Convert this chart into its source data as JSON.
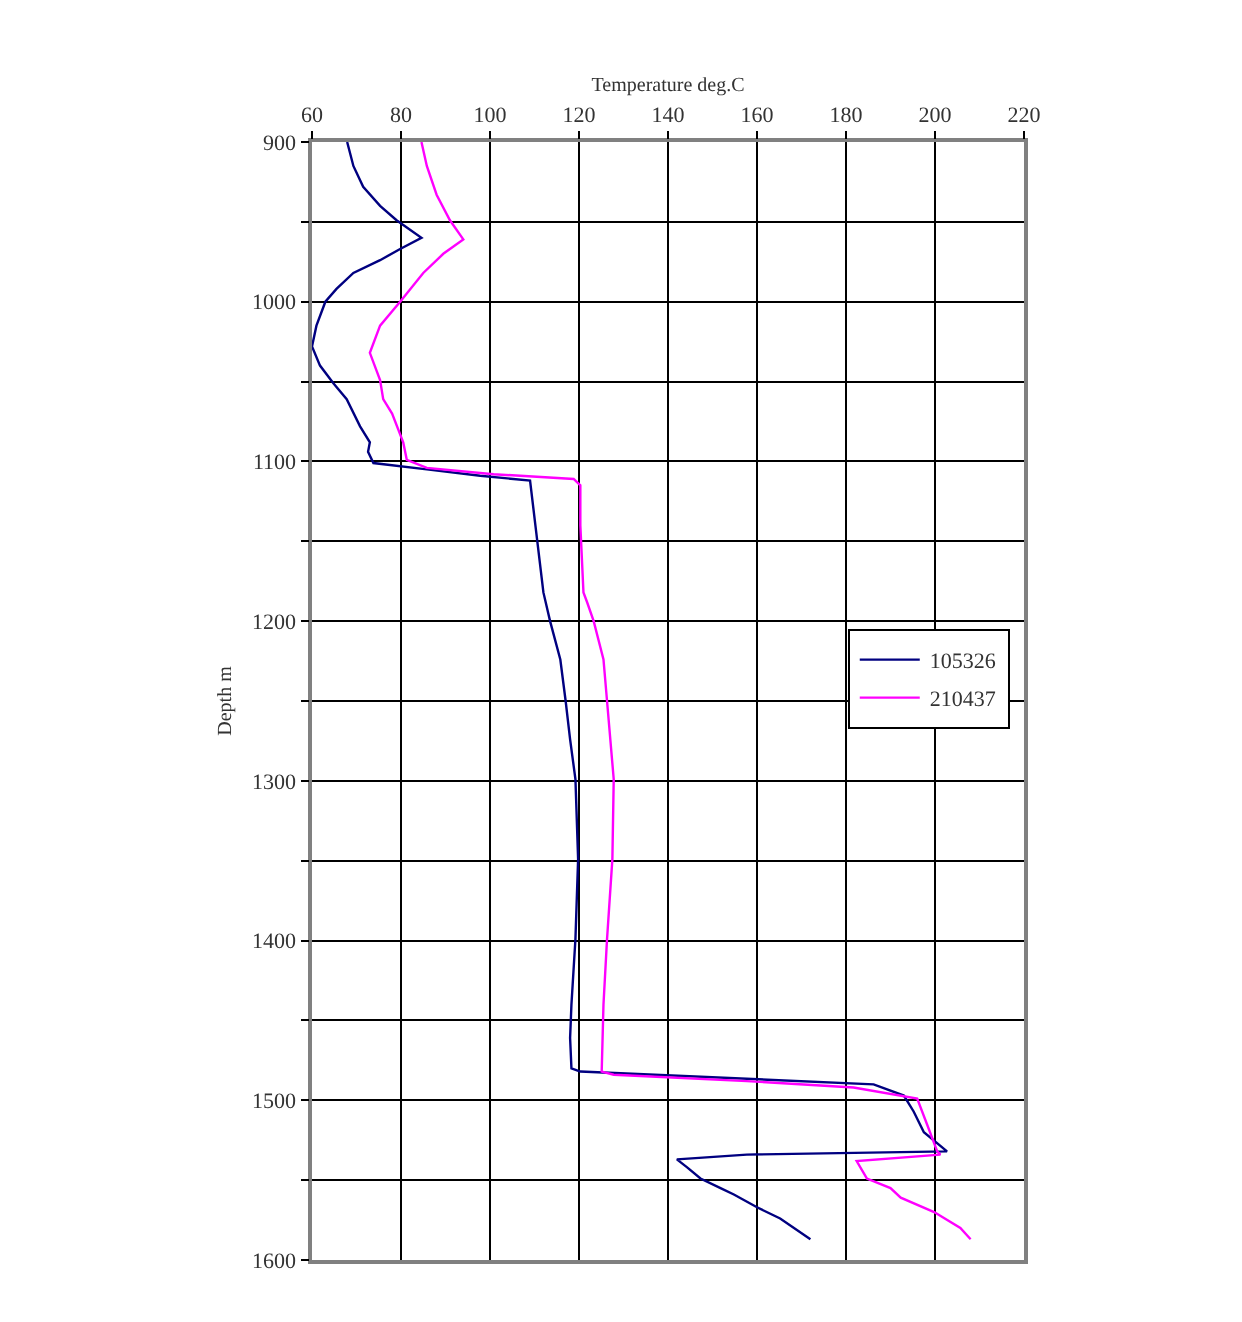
{
  "chart_data": {
    "type": "line",
    "xlabel": "Temperature deg.C",
    "ylabel": "Depth m",
    "xlim": [
      60,
      220
    ],
    "ylim": [
      1600,
      900
    ],
    "xticks": [
      60,
      80,
      100,
      120,
      140,
      160,
      180,
      200,
      220
    ],
    "yticks": [
      900,
      {
        "value": 950,
        "label": null
      },
      1000,
      {
        "value": 1050,
        "label": null
      },
      1100,
      {
        "value": 1150,
        "label": null
      },
      1200,
      {
        "value": 1250,
        "label": null
      },
      1300,
      {
        "value": 1350,
        "label": null
      },
      1400,
      {
        "value": 1450,
        "label": null
      },
      1500,
      {
        "value": 1550,
        "label": null
      },
      1600
    ],
    "grid": true,
    "legend": "right",
    "marker": "none",
    "line_style": "solid",
    "series": [
      {
        "name": "105326",
        "color": "#000080",
        "x": [
          67.9,
          69.3,
          71.5,
          75.3,
          79,
          84.6,
          79.8,
          75.3,
          69.3,
          65.5,
          63,
          61,
          60,
          61.8,
          64.8,
          67.8,
          70.8,
          73,
          72.6,
          73.8,
          85.8,
          97.8,
          109,
          110.2,
          112,
          113.5,
          115.8,
          117,
          118,
          119.2,
          119.8,
          119.2,
          118.3,
          118,
          118.3,
          120.3,
          186.2,
          193,
          195.2,
          197.5,
          202.7,
          157.7,
          142,
          144.3,
          147.3,
          151.8,
          154.8,
          160,
          165.2,
          172
        ],
        "values": [
          900,
          915,
          928,
          940,
          949,
          960,
          967,
          974,
          982,
          992,
          1000,
          1015,
          1028,
          1040,
          1051,
          1061,
          1078,
          1088,
          1094,
          1101,
          1105,
          1109,
          1112,
          1140,
          1182,
          1200,
          1224,
          1250,
          1274,
          1299,
          1349,
          1399,
          1440,
          1461,
          1480,
          1482,
          1490,
          1497,
          1507,
          1520,
          1532,
          1534,
          1537,
          1542,
          1549,
          1555,
          1559,
          1567,
          1574,
          1587
        ]
      },
      {
        "name": "210437",
        "color": "#ff00ff",
        "x": [
          84.6,
          85.8,
          88,
          91,
          94,
          89.5,
          85,
          79.8,
          75.3,
          73,
          75.3,
          76,
          78,
          80.5,
          81.3,
          85.8,
          100.8,
          118.8,
          120.3,
          120.3,
          121,
          121.8,
          123.3,
          125.5,
          126.3,
          127.8,
          127.5,
          126.3,
          125.5,
          125.1,
          127.8,
          157.7,
          181.7,
          196,
          198.2,
          200.5,
          201.2,
          182.4,
          184.7,
          190,
          192.3,
          199.8,
          205.7,
          208
        ],
        "values": [
          900,
          915,
          933,
          949,
          961,
          970,
          982,
          1000,
          1015,
          1032,
          1049,
          1061,
          1070,
          1088,
          1099,
          1104,
          1108,
          1111,
          1115,
          1140,
          1182,
          1188,
          1200,
          1224,
          1250,
          1299,
          1349,
          1399,
          1440,
          1482,
          1484,
          1488,
          1492,
          1499,
          1515,
          1532,
          1534,
          1538,
          1549,
          1555,
          1561,
          1570,
          1580,
          1587
        ]
      }
    ]
  }
}
